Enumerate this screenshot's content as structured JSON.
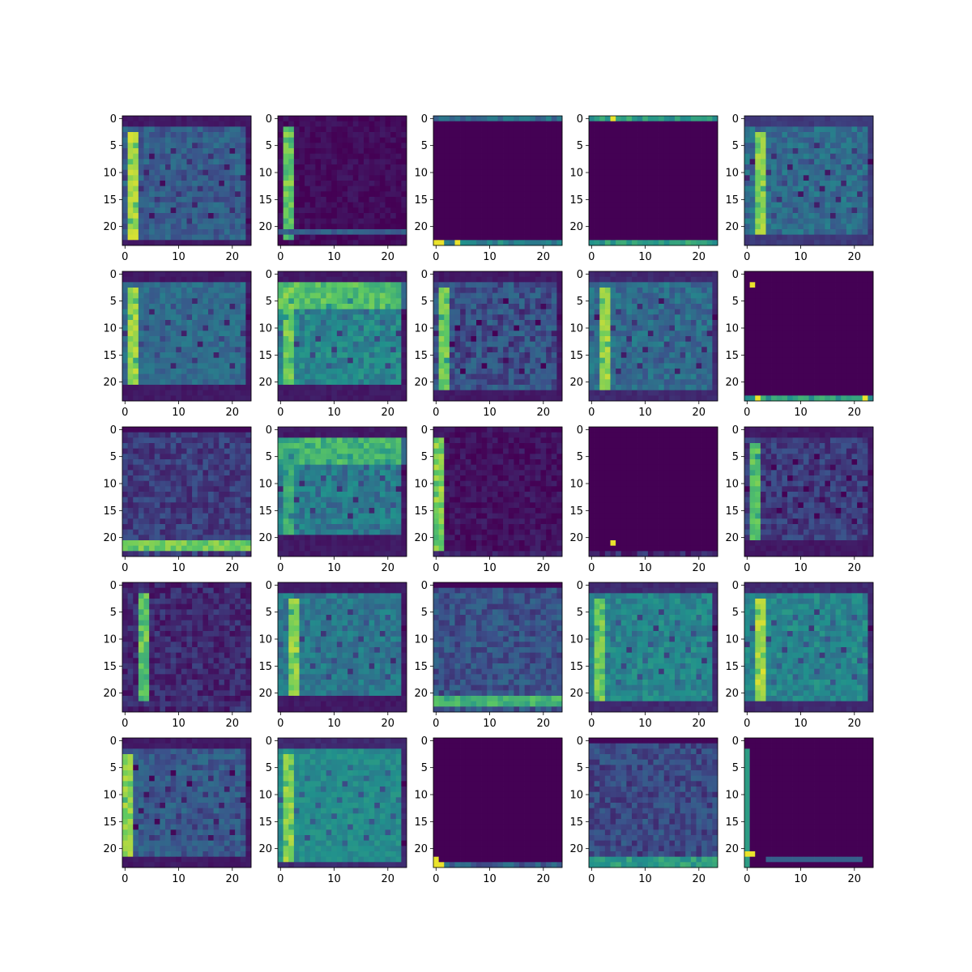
{
  "chart_data": {
    "type": "heatmap",
    "layout": {
      "rows": 5,
      "cols": 5
    },
    "colormap": "viridis",
    "colormap_stops": [
      "#440154",
      "#3b528b",
      "#21918c",
      "#5ec962",
      "#fde725"
    ],
    "grid_size": 24,
    "xlim": [
      -0.5,
      23.5
    ],
    "ylim": [
      23.5,
      -0.5
    ],
    "x_ticks": [
      0,
      10,
      20
    ],
    "x_tick_labels": [
      "0",
      "10",
      "20"
    ],
    "y_ticks": [
      0,
      5,
      10,
      15,
      20
    ],
    "y_tick_labels": [
      "0",
      "5",
      "10",
      "15",
      "20"
    ],
    "grid": false,
    "panels": [
      {
        "pattern": "frame",
        "params": {
          "bg": 0.3,
          "vline": 1,
          "vline_val": 0.95,
          "hline_bottom": 22,
          "edge_val": 0.05,
          "noise": 0.18
        }
      },
      {
        "pattern": "left-bar",
        "params": {
          "bg": 0.03,
          "vline": 1,
          "vline_val": 0.85,
          "hline_bottom": 21,
          "hline_val": 0.25,
          "noise": 0.1
        }
      },
      {
        "pattern": "edges-tb",
        "params": {
          "bg": 0.0,
          "top_row": 0,
          "top_val": 0.35,
          "bottom_row": 23,
          "bottom_val": 0.45,
          "hot_cells": [
            [
              23,
              0
            ],
            [
              23,
              1
            ],
            [
              23,
              4
            ]
          ]
        }
      },
      {
        "pattern": "edges-tb",
        "params": {
          "bg": 0.0,
          "top_row": 0,
          "top_val": 0.55,
          "bottom_row": 23,
          "bottom_val": 0.55,
          "hot_cells": [
            [
              0,
              4
            ]
          ]
        }
      },
      {
        "pattern": "frame",
        "params": {
          "bg": 0.35,
          "vline": 2,
          "vline_val": 0.9,
          "hline_bottom": 21,
          "edge_val": 0.15,
          "noise": 0.2
        }
      },
      {
        "pattern": "frame",
        "params": {
          "bg": 0.35,
          "vline": 1,
          "vline_val": 0.92,
          "hline_bottom": 20,
          "edge_val": 0.05,
          "noise": 0.15
        }
      },
      {
        "pattern": "bright-top",
        "params": {
          "bg": 0.45,
          "vline": 1,
          "vline_val": 0.85,
          "hline_bottom": 20,
          "edge_val": 0.05,
          "noise": 0.2
        }
      },
      {
        "pattern": "frame",
        "params": {
          "bg": 0.25,
          "vline": 1,
          "vline_val": 0.85,
          "hline_bottom": 21,
          "edge_val": 0.05,
          "noise": 0.22
        }
      },
      {
        "pattern": "frame",
        "params": {
          "bg": 0.35,
          "vline": 2,
          "vline_val": 0.92,
          "hline_bottom": 21,
          "edge_val": 0.1,
          "noise": 0.2
        }
      },
      {
        "pattern": "edges-tb",
        "params": {
          "bg": 0.0,
          "top_row": -1,
          "top_val": 0.0,
          "bottom_row": 23,
          "bottom_val": 0.55,
          "hot_cells": [
            [
              23,
              2
            ],
            [
              23,
              22
            ],
            [
              2,
              1
            ]
          ]
        }
      },
      {
        "pattern": "bottom-bar",
        "params": {
          "bg": 0.18,
          "hline": 21,
          "hline_val": 0.85,
          "noise": 0.18
        }
      },
      {
        "pattern": "bright-top",
        "params": {
          "bg": 0.4,
          "vline": 1,
          "vline_val": 0.7,
          "hline_bottom": 19,
          "edge_val": 0.05,
          "noise": 0.22
        }
      },
      {
        "pattern": "left-bar",
        "params": {
          "bg": 0.05,
          "vline": 0,
          "vline_val": 0.9,
          "hline_bottom": 23,
          "hline_val": 0.05,
          "noise": 0.12
        }
      },
      {
        "pattern": "edges-tb",
        "params": {
          "bg": 0.0,
          "top_row": -1,
          "top_val": 0.0,
          "bottom_row": 23,
          "bottom_val": 0.12,
          "hot_cells": [
            [
              21,
              4
            ]
          ]
        }
      },
      {
        "pattern": "frame",
        "params": {
          "bg": 0.18,
          "vline": 1,
          "vline_val": 0.8,
          "hline_bottom": 20,
          "edge_val": 0.05,
          "noise": 0.18
        }
      },
      {
        "pattern": "left-bar",
        "params": {
          "bg": 0.12,
          "vline": 3,
          "vline_val": 0.85,
          "hline_bottom": 22,
          "hline_val": 0.1,
          "noise": 0.18
        }
      },
      {
        "pattern": "frame",
        "params": {
          "bg": 0.4,
          "vline": 2,
          "vline_val": 0.9,
          "hline_bottom": 20,
          "edge_val": 0.05,
          "noise": 0.18
        }
      },
      {
        "pattern": "bottom-bar",
        "params": {
          "bg": 0.25,
          "hline": 21,
          "hline_val": 0.75,
          "noise": 0.2
        }
      },
      {
        "pattern": "frame",
        "params": {
          "bg": 0.45,
          "vline": 1,
          "vline_val": 0.85,
          "hline_bottom": 21,
          "edge_val": 0.1,
          "noise": 0.18
        }
      },
      {
        "pattern": "frame",
        "params": {
          "bg": 0.45,
          "vline": 2,
          "vline_val": 0.95,
          "hline_bottom": 21,
          "edge_val": 0.1,
          "noise": 0.18
        }
      },
      {
        "pattern": "frame",
        "params": {
          "bg": 0.28,
          "vline": 0,
          "vline_val": 0.9,
          "hline_bottom": 21,
          "edge_val": 0.05,
          "noise": 0.18
        }
      },
      {
        "pattern": "frame",
        "params": {
          "bg": 0.48,
          "vline": 1,
          "vline_val": 0.9,
          "hline_bottom": 22,
          "edge_val": 0.1,
          "noise": 0.12
        }
      },
      {
        "pattern": "edges-tb",
        "params": {
          "bg": 0.0,
          "top_row": -1,
          "top_val": 0.0,
          "bottom_row": 23,
          "bottom_val": 0.3,
          "hot_cells": [
            [
              22,
              0
            ],
            [
              23,
              0
            ],
            [
              23,
              1
            ]
          ]
        }
      },
      {
        "pattern": "bottom-bar",
        "params": {
          "bg": 0.22,
          "hline": 22,
          "hline_val": 0.65,
          "noise": 0.2
        }
      },
      {
        "pattern": "corner",
        "params": {
          "bg": 0.0,
          "vline": 0,
          "vline_val": 0.55,
          "hline": 22,
          "hline_val": 0.3,
          "hot_cells": [
            [
              21,
              0
            ],
            [
              21,
              1
            ]
          ]
        }
      }
    ]
  }
}
